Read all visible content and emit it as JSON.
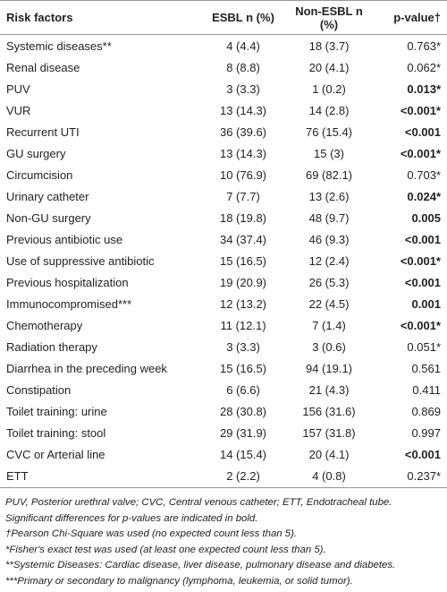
{
  "table": {
    "header": [
      "Risk factors",
      "ESBL n (%)",
      "Non-ESBL n (%)",
      "p-value†"
    ],
    "rows": [
      {
        "factor": "Systemic diseases**",
        "esbl": "4 (4.4)",
        "non_esbl": "18 (3.7)",
        "p_value": "0.763*",
        "significant": false
      },
      {
        "factor": "Renal disease",
        "esbl": "8 (8.8)",
        "non_esbl": "20 (4.1)",
        "p_value": "0.062*",
        "significant": false
      },
      {
        "factor": "PUV",
        "esbl": "3 (3.3)",
        "non_esbl": "1 (0.2)",
        "p_value": "0.013*",
        "significant": true
      },
      {
        "factor": "VUR",
        "esbl": "13 (14.3)",
        "non_esbl": "14 (2.8)",
        "p_value": "<0.001*",
        "significant": true
      },
      {
        "factor": "Recurrent UTI",
        "esbl": "36 (39.6)",
        "non_esbl": "76 (15.4)",
        "p_value": "<0.001",
        "significant": true
      },
      {
        "factor": "GU surgery",
        "esbl": "13 (14.3)",
        "non_esbl": "15 (3)",
        "p_value": "<0.001*",
        "significant": true
      },
      {
        "factor": "Circumcision",
        "esbl": "10 (76.9)",
        "non_esbl": "69 (82.1)",
        "p_value": "0.703*",
        "significant": false
      },
      {
        "factor": "Urinary catheter",
        "esbl": "7 (7.7)",
        "non_esbl": "13 (2.6)",
        "p_value": "0.024*",
        "significant": true
      },
      {
        "factor": "Non-GU surgery",
        "esbl": "18 (19.8)",
        "non_esbl": "48 (9.7)",
        "p_value": "0.005",
        "significant": true
      },
      {
        "factor": "Previous antibiotic use",
        "esbl": "34 (37.4)",
        "non_esbl": "46 (9.3)",
        "p_value": "<0.001",
        "significant": true
      },
      {
        "factor": "Use of suppressive antibiotic",
        "esbl": "15 (16.5)",
        "non_esbl": "12 (2.4)",
        "p_value": "<0.001*",
        "significant": true
      },
      {
        "factor": "Previous hospitalization",
        "esbl": "19 (20.9)",
        "non_esbl": "26 (5.3)",
        "p_value": "<0.001",
        "significant": true
      },
      {
        "factor": "Immunocompromised***",
        "esbl": "12 (13.2)",
        "non_esbl": "22 (4.5)",
        "p_value": "0.001",
        "significant": true
      },
      {
        "factor": "Chemotherapy",
        "esbl": "11 (12.1)",
        "non_esbl": "7 (1.4)",
        "p_value": "<0.001*",
        "significant": true
      },
      {
        "factor": "Radiation therapy",
        "esbl": "3 (3.3)",
        "non_esbl": "3 (0.6)",
        "p_value": "0.051*",
        "significant": false
      },
      {
        "factor": "Diarrhea in the preceding week",
        "esbl": "15 (16.5)",
        "non_esbl": "94 (19.1)",
        "p_value": "0.561",
        "significant": false
      },
      {
        "factor": "Constipation",
        "esbl": "6 (6.6)",
        "non_esbl": "21 (4.3)",
        "p_value": "0.411",
        "significant": false
      },
      {
        "factor": "Toilet training: urine",
        "esbl": "28 (30.8)",
        "non_esbl": "156 (31.6)",
        "p_value": "0.869",
        "significant": false
      },
      {
        "factor": "Toilet training: stool",
        "esbl": "29 (31.9)",
        "non_esbl": "157 (31.8)",
        "p_value": "0.997",
        "significant": false
      },
      {
        "factor": "CVC or Arterial line",
        "esbl": "14 (15.4)",
        "non_esbl": "20 (4.1)",
        "p_value": "<0.001",
        "significant": true
      },
      {
        "factor": "ETT",
        "esbl": "2 (2.2)",
        "non_esbl": "4 (0.8)",
        "p_value": "0.237*",
        "significant": false
      }
    ]
  },
  "notes": [
    "PUV, Posterior urethral valve; CVC, Central venous catheter; ETT, Endotracheal tube.",
    "Significant differences for p-values are indicated in bold.",
    "†Pearson Chi-Square was used (no expected count less than 5).",
    "*Fisher's exact test was used (at least one expected count less than 5).",
    "**Systemic Diseases: Cardiac disease, liver disease, pulmonary disease and diabetes.",
    "***Primary or secondary to malignancy (lymphoma, leukemia, or solid tumor)."
  ]
}
